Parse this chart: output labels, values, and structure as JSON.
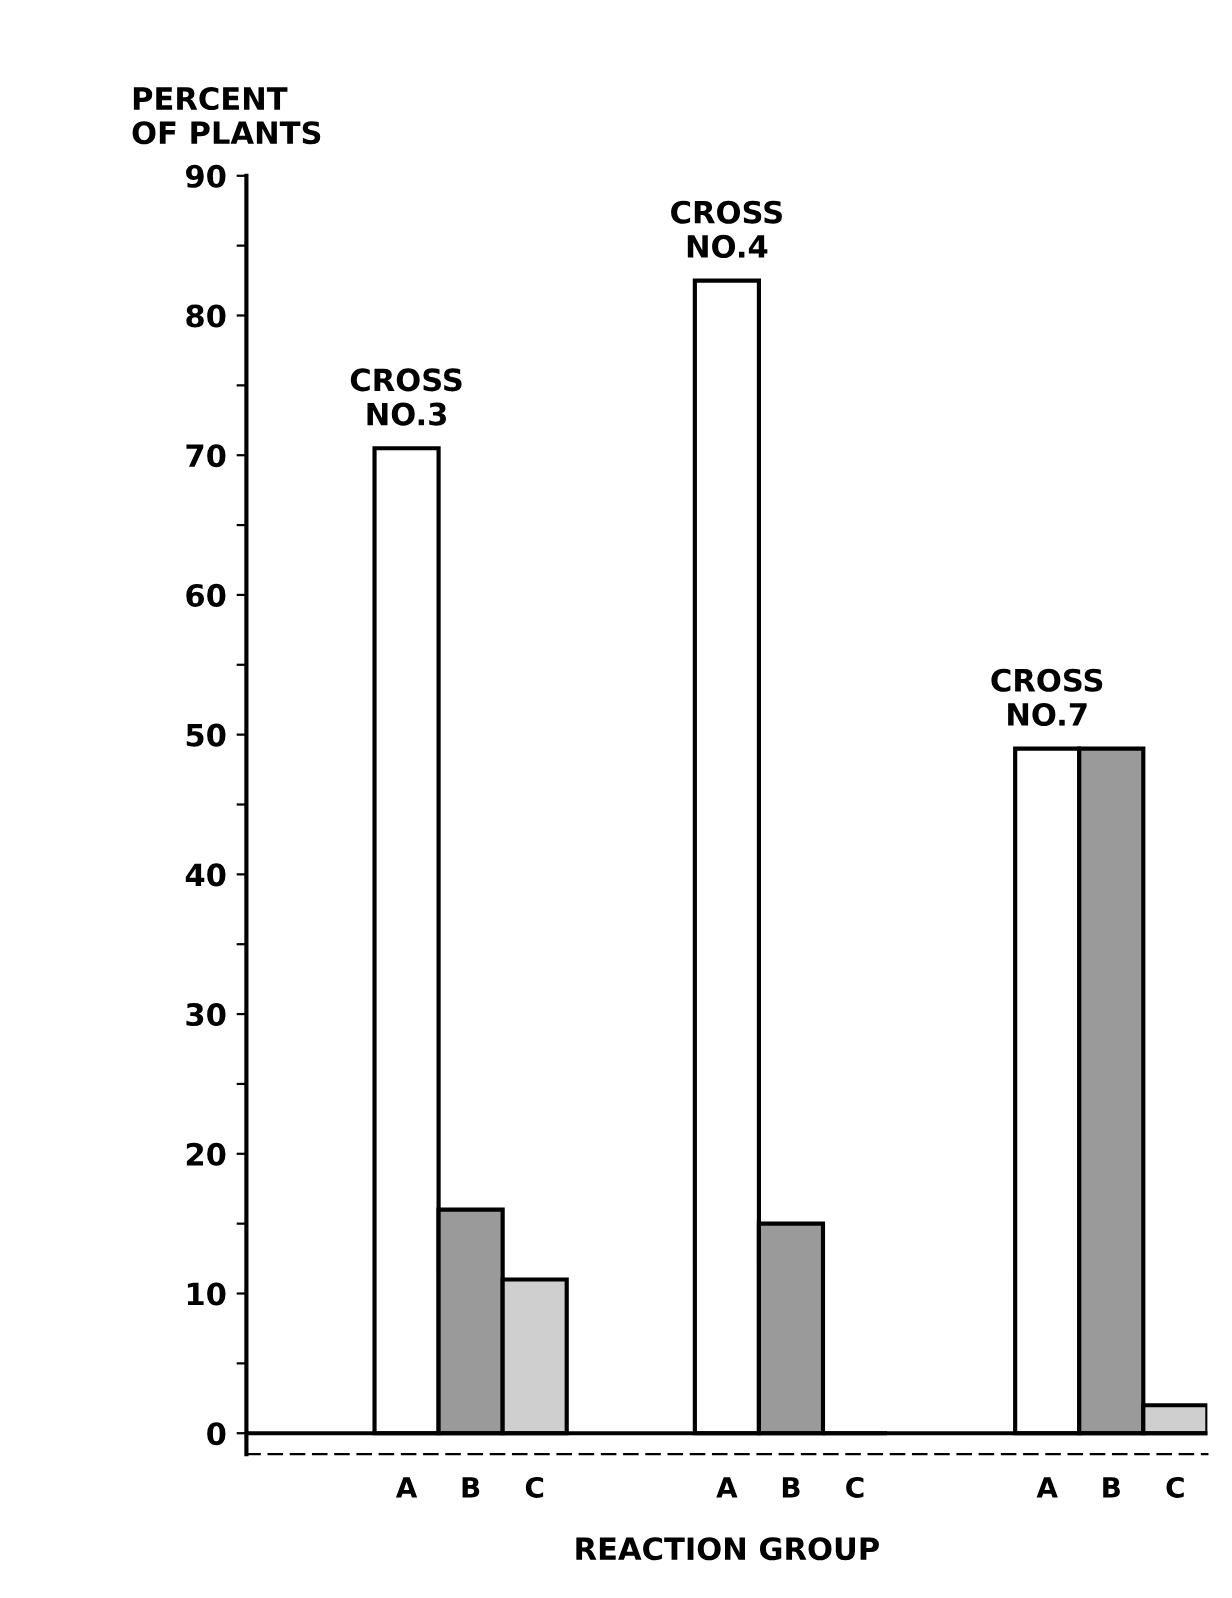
{
  "chart_data": {
    "type": "bar",
    "categories": [
      null,
      null,
      "A",
      "B",
      "C",
      null,
      null,
      "A",
      "B",
      "C",
      null,
      null,
      "A",
      "B",
      "C"
    ],
    "values": [
      null,
      null,
      70.5,
      16,
      11,
      null,
      null,
      82.5,
      15,
      0,
      null,
      null,
      49,
      49,
      2
    ],
    "colors": [
      null,
      null,
      "#ffffff",
      "#9a9a9a",
      "#cfcfcf",
      null,
      null,
      "#ffffff",
      "#9a9a9a",
      "#000000",
      null,
      null,
      "#ffffff",
      "#9a9a9a",
      "#cfcfcf"
    ],
    "ylabel": "PERCENT\nOF PLANTS",
    "xlabel": "REACTION GROUP",
    "ylim": [
      -1.5,
      90
    ],
    "yticks": [
      0,
      {
        "value": 5,
        "label": null
      },
      10,
      {
        "value": 15,
        "label": null
      },
      20,
      {
        "value": 25,
        "label": null
      },
      30,
      {
        "value": 35,
        "label": null
      },
      40,
      {
        "value": 45,
        "label": null
      },
      50,
      {
        "value": 55,
        "label": null
      },
      60,
      {
        "value": 65,
        "label": null
      },
      70,
      {
        "value": 75,
        "label": null
      },
      80,
      {
        "value": 85,
        "label": null
      },
      90
    ],
    "ref_lines": [
      {
        "axis": "y",
        "value": 0,
        "color": "#000000"
      }
    ],
    "annotations": [
      {
        "text": "CROSS\nNO.3",
        "y": 70.5
      },
      {
        "text": "CROSS\nNO.4",
        "y": 82.5
      },
      {
        "text": "CROSS\nNO.7",
        "y": 49
      }
    ],
    "grid": false,
    "legend": false
  }
}
